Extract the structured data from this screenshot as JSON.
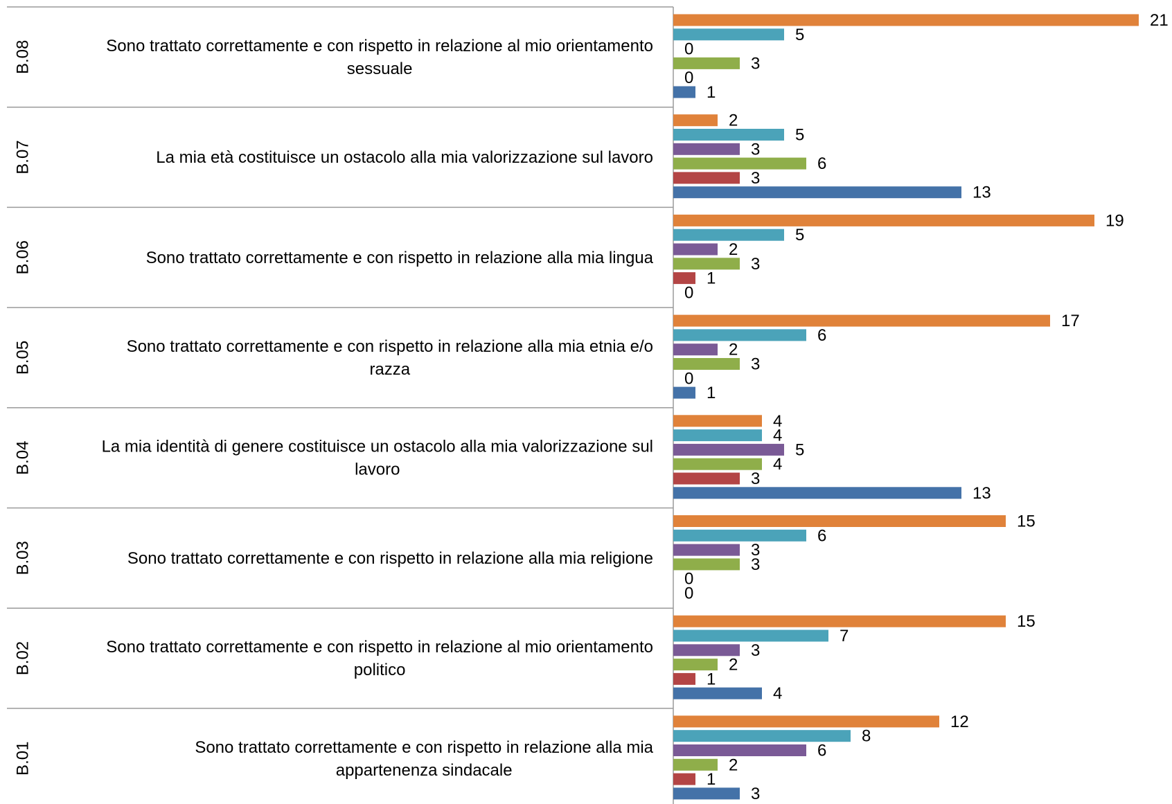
{
  "chart_data": {
    "type": "bar",
    "orientation": "horizontal",
    "title": "",
    "xlabel": "",
    "ylabel": "",
    "xlim": [
      0,
      21
    ],
    "grid": false,
    "legend": "none",
    "series_colors": [
      "#E0823A",
      "#4BA3B9",
      "#7A5A96",
      "#8FAE4A",
      "#B34545",
      "#4472A8"
    ],
    "categories": [
      {
        "code": "B.08",
        "label_lines": [
          "Sono trattato correttamente e con rispetto in relazione al mio orientamento",
          "sessuale"
        ],
        "values": [
          21,
          5,
          0,
          3,
          0,
          1
        ]
      },
      {
        "code": "B.07",
        "label_lines": [
          "La mia età costituisce un ostacolo alla mia valorizzazione sul lavoro"
        ],
        "values": [
          2,
          5,
          3,
          6,
          3,
          13
        ]
      },
      {
        "code": "B.06",
        "label_lines": [
          "Sono trattato correttamente e con rispetto in relazione alla mia lingua"
        ],
        "values": [
          19,
          5,
          2,
          3,
          1,
          0
        ]
      },
      {
        "code": "B.05",
        "label_lines": [
          "Sono trattato correttamente e con rispetto in relazione alla mia etnia e/o",
          "razza"
        ],
        "values": [
          17,
          6,
          2,
          3,
          0,
          1
        ]
      },
      {
        "code": "B.04",
        "label_lines": [
          "La mia identità di genere costituisce un ostacolo alla mia valorizzazione sul",
          "lavoro"
        ],
        "values": [
          4,
          4,
          5,
          4,
          3,
          13
        ]
      },
      {
        "code": "B.03",
        "label_lines": [
          "Sono trattato correttamente e con rispetto in relazione alla mia religione"
        ],
        "values": [
          15,
          6,
          3,
          3,
          0,
          0
        ]
      },
      {
        "code": "B.02",
        "label_lines": [
          "Sono trattato correttamente e con rispetto in relazione al mio orientamento",
          "politico"
        ],
        "values": [
          15,
          7,
          3,
          2,
          1,
          4
        ]
      },
      {
        "code": "B.01",
        "label_lines": [
          "Sono trattato correttamente e con rispetto in relazione alla mia",
          "appartenenza sindacale"
        ],
        "values": [
          12,
          8,
          6,
          2,
          1,
          3
        ]
      }
    ]
  }
}
